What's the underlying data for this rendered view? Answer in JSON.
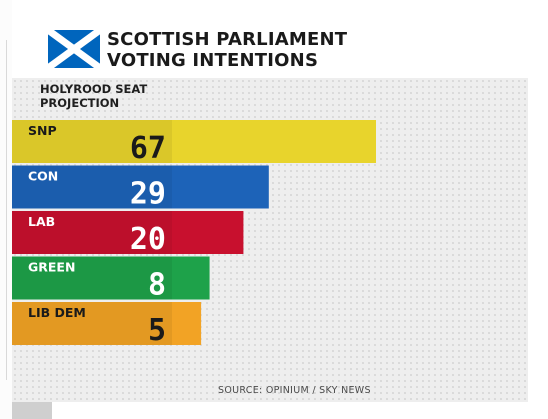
{
  "header": {
    "title_line1": "SCOTTISH PARLIAMENT",
    "title_line2": "VOTING INTENTIONS",
    "flag_icon": "scottish-saltire-flag-icon"
  },
  "source": "SOURCE: OPINIUM / SKY NEWS",
  "chart_data": {
    "type": "bar",
    "orientation": "horizontal",
    "title": "HOLYROOD SEAT PROJECTION",
    "title_lines": [
      "HOLYROOD SEAT",
      "PROJECTION"
    ],
    "categories": [
      "SNP",
      "CON",
      "LAB",
      "GREEN",
      "LIB DEM"
    ],
    "values": [
      67,
      29,
      20,
      8,
      5
    ],
    "colors": [
      "#e8d42c",
      "#1d63b8",
      "#c8102e",
      "#1ea24a",
      "#f2a325"
    ],
    "label_colors": [
      "#1a1a1a",
      "#ffffff",
      "#ffffff",
      "#ffffff",
      "#1a1a1a"
    ],
    "grid": false,
    "legend": "none"
  }
}
